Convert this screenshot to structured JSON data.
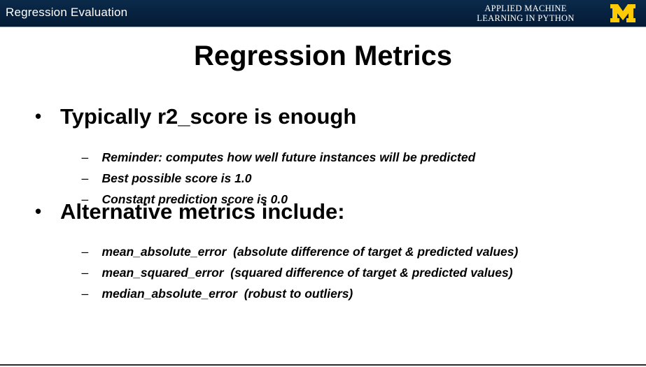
{
  "header": {
    "section_title": "Regression Evaluation",
    "course_line1": "APPLIED MACHINE",
    "course_line2": "LEARNING IN PYTHON",
    "logo_icon": "block-m-logo-icon",
    "bar_color": "#06213f",
    "logo_color": "#ffcb05"
  },
  "slide": {
    "title": "Regression Metrics",
    "bullets": [
      {
        "text": "Typically r2_score is enough",
        "sub": [
          "Reminder: computes how well future instances will be predicted",
          "Best possible score is 1.0",
          "Constant prediction score is 0.0"
        ]
      },
      {
        "text": "Alternative metrics include:",
        "sub": [
          "mean_absolute_error  (absolute difference of target & predicted values)",
          "mean_squared_error  (squared difference of target & predicted values)",
          "median_absolute_error  (robust to outliers)"
        ]
      }
    ]
  }
}
